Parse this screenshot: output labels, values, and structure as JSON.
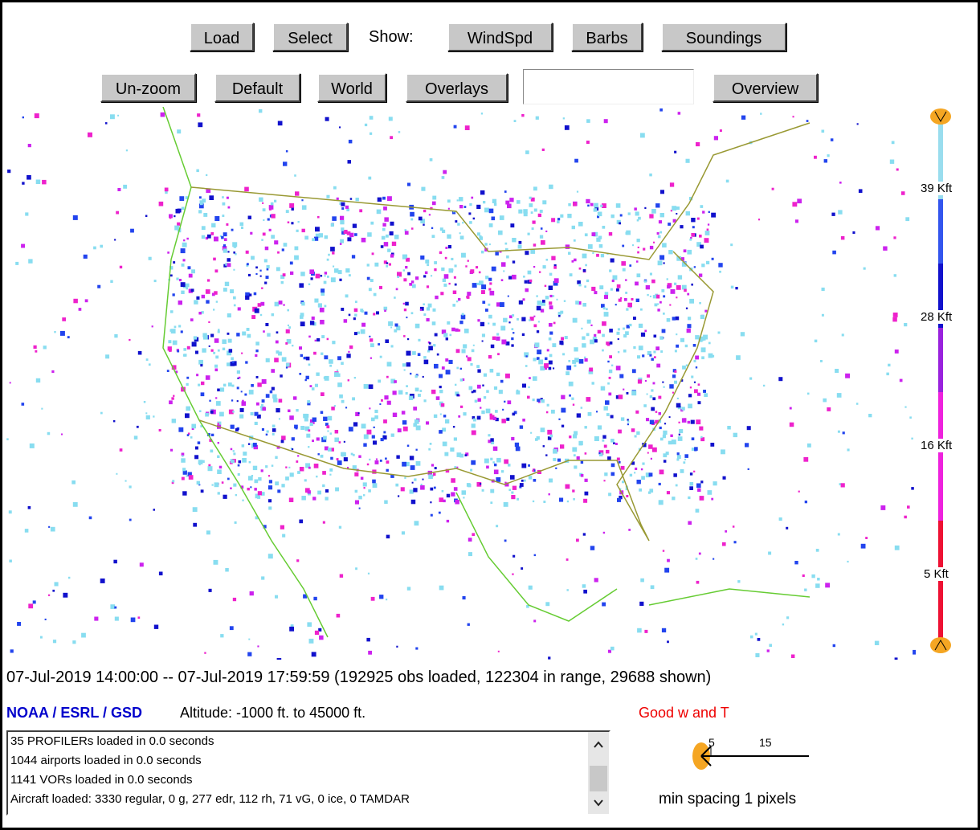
{
  "toolbar": {
    "row1": {
      "buttons_left": [
        "Load",
        "Select"
      ],
      "show_label": "Show:",
      "buttons_right": [
        "WindSpd",
        "Barbs",
        "Soundings"
      ]
    },
    "row2": {
      "buttons_left": [
        "Un-zoom",
        "Default",
        "World",
        "Overlays"
      ],
      "buttons_right": [
        "Overview"
      ]
    }
  },
  "altitude_scale": {
    "labels": [
      "39 Kft",
      "28 Kft",
      "16 Kft",
      "5 Kft"
    ]
  },
  "status": "07-Jul-2019 14:00:00 -- 07-Jul-2019 17:59:59 (192925 obs loaded, 122304 in range, 29688 shown)",
  "credit": "NOAA / ESRL / GSD",
  "altitude_range": "Altitude: -1000 ft. to 45000 ft.",
  "quality": "Good w and T",
  "log": [
    "35 PROFILERs loaded in 0.0 seconds",
    "1044 airports loaded in 0.0 seconds",
    "1141 VORs loaded in 0.0 seconds",
    "Aircraft loaded: 3330 regular, 0 g, 277 edr, 112 rh, 71 vG, 0 ice, 0 TAMDAR"
  ],
  "barb_legend": {
    "labels": [
      "5",
      "15"
    ],
    "caption": "min spacing 1 pixels"
  }
}
